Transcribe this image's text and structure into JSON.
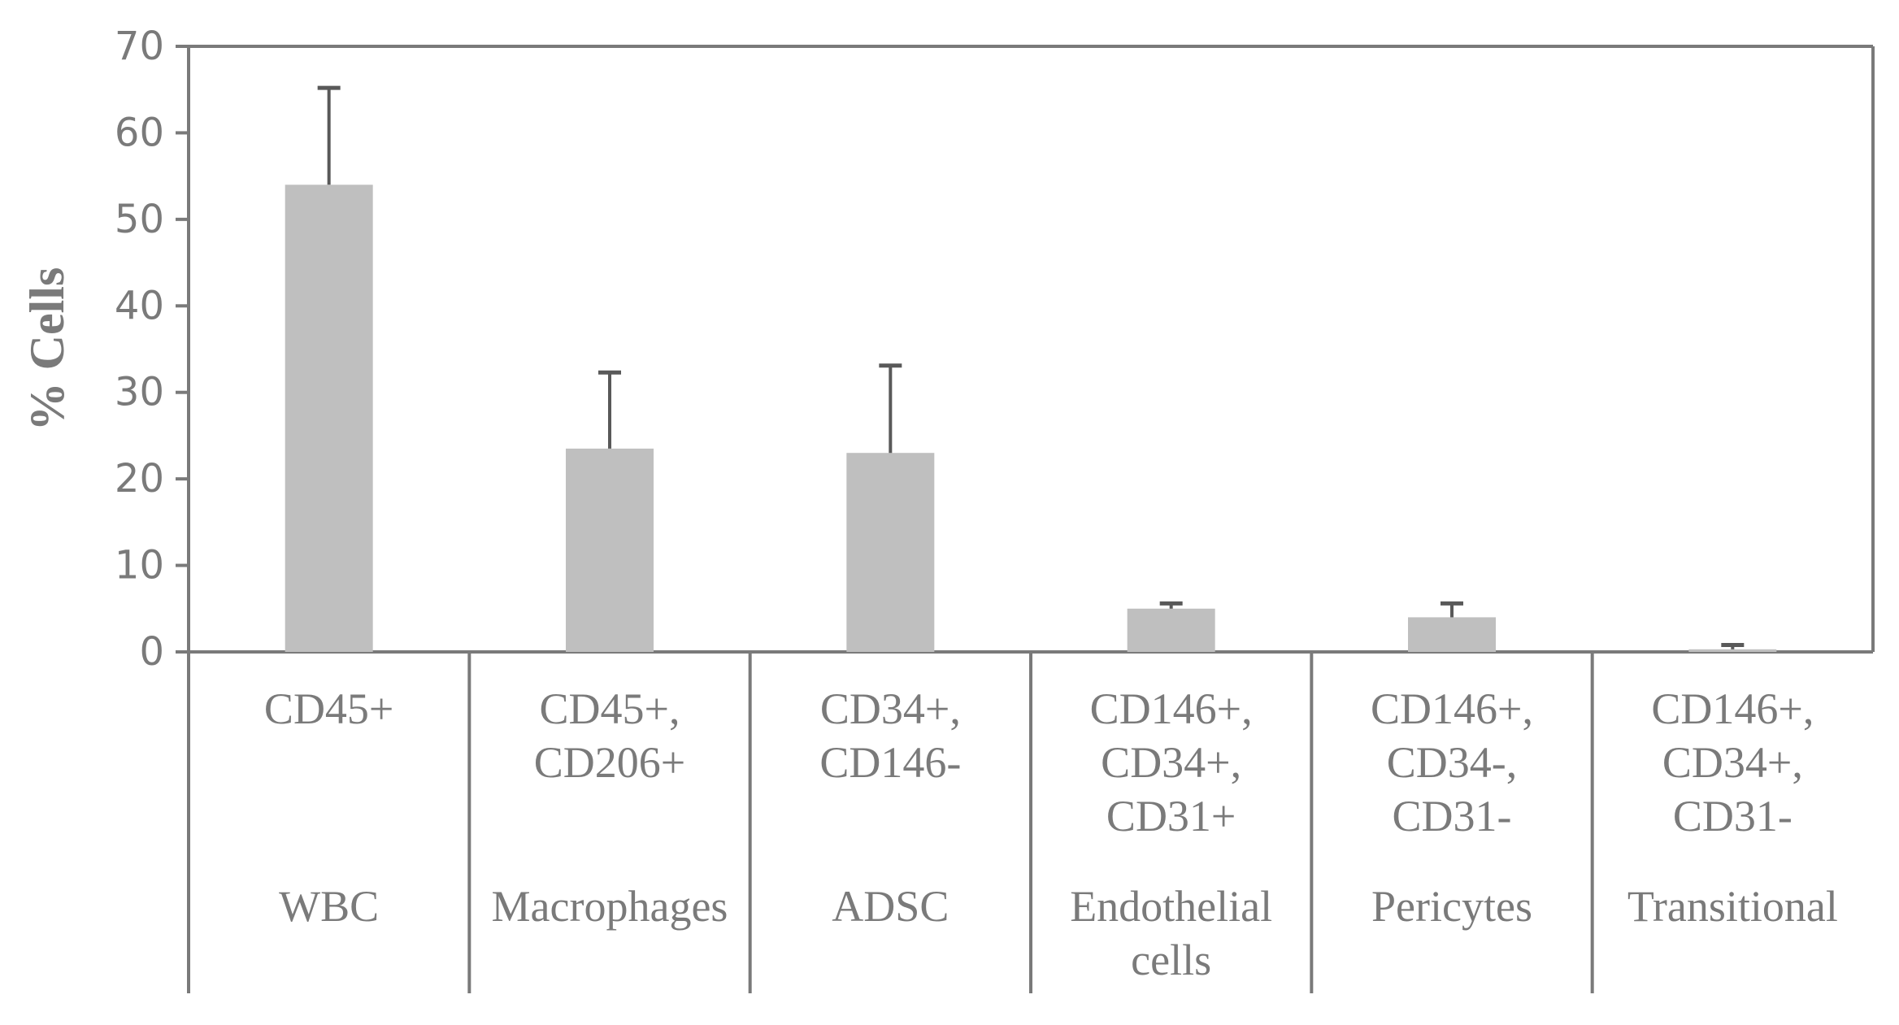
{
  "chart_data": {
    "type": "bar",
    "ylabel": "% Cells",
    "xlabel": "",
    "title": "",
    "ylim": [
      0,
      70
    ],
    "yticks": [
      0,
      10,
      20,
      30,
      40,
      50,
      60,
      70
    ],
    "grid": false,
    "categories": [
      {
        "markers": [
          "CD45+"
        ],
        "name": [
          "WBC"
        ]
      },
      {
        "markers": [
          "CD45+,",
          "CD206+"
        ],
        "name": [
          "Macrophages"
        ]
      },
      {
        "markers": [
          "CD34+,",
          "CD146-"
        ],
        "name": [
          "ADSC"
        ]
      },
      {
        "markers": [
          "CD146+,",
          "CD34+,",
          "CD31+"
        ],
        "name": [
          "Endothelial",
          "cells"
        ]
      },
      {
        "markers": [
          "CD146+,",
          "CD34-,",
          "CD31-"
        ],
        "name": [
          "Pericytes"
        ]
      },
      {
        "markers": [
          "CD146+,",
          "CD34+,",
          "CD31-"
        ],
        "name": [
          "Transitional"
        ]
      }
    ],
    "values": [
      54,
      23.5,
      23,
      5,
      4,
      0.3
    ],
    "error_upper": [
      65.2,
      32.3,
      33.1,
      5.6,
      5.6,
      0.8
    ],
    "colors": {
      "bar": "#bfbfbf",
      "axis": "#7a7a7a",
      "error": "#595959"
    }
  }
}
